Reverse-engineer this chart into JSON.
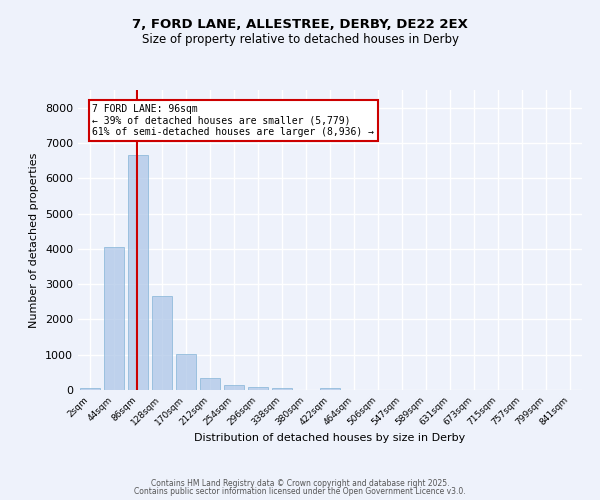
{
  "title1": "7, FORD LANE, ALLESTREE, DERBY, DE22 2EX",
  "title2": "Size of property relative to detached houses in Derby",
  "xlabel": "Distribution of detached houses by size in Derby",
  "ylabel": "Number of detached properties",
  "categories": [
    "2sqm",
    "44sqm",
    "86sqm",
    "128sqm",
    "170sqm",
    "212sqm",
    "254sqm",
    "296sqm",
    "338sqm",
    "380sqm",
    "422sqm",
    "464sqm",
    "506sqm",
    "547sqm",
    "589sqm",
    "631sqm",
    "673sqm",
    "715sqm",
    "757sqm",
    "799sqm",
    "841sqm"
  ],
  "values": [
    50,
    4050,
    6650,
    2650,
    1020,
    330,
    130,
    95,
    70,
    0,
    50,
    0,
    0,
    0,
    0,
    0,
    0,
    0,
    0,
    0,
    0
  ],
  "bar_color": "#aec6e8",
  "bar_edge_color": "#7bafd4",
  "bar_alpha": 0.75,
  "vline_x": 1.95,
  "vline_color": "#cc0000",
  "annotation_text": "7 FORD LANE: 96sqm\n← 39% of detached houses are smaller (5,779)\n61% of semi-detached houses are larger (8,936) →",
  "annotation_box_color": "#ffffff",
  "annotation_box_edge": "#cc0000",
  "ylim": [
    0,
    8500
  ],
  "yticks": [
    0,
    1000,
    2000,
    3000,
    4000,
    5000,
    6000,
    7000,
    8000
  ],
  "background_color": "#eef2fb",
  "grid_color": "#ffffff",
  "footer1": "Contains HM Land Registry data © Crown copyright and database right 2025.",
  "footer2": "Contains public sector information licensed under the Open Government Licence v3.0."
}
